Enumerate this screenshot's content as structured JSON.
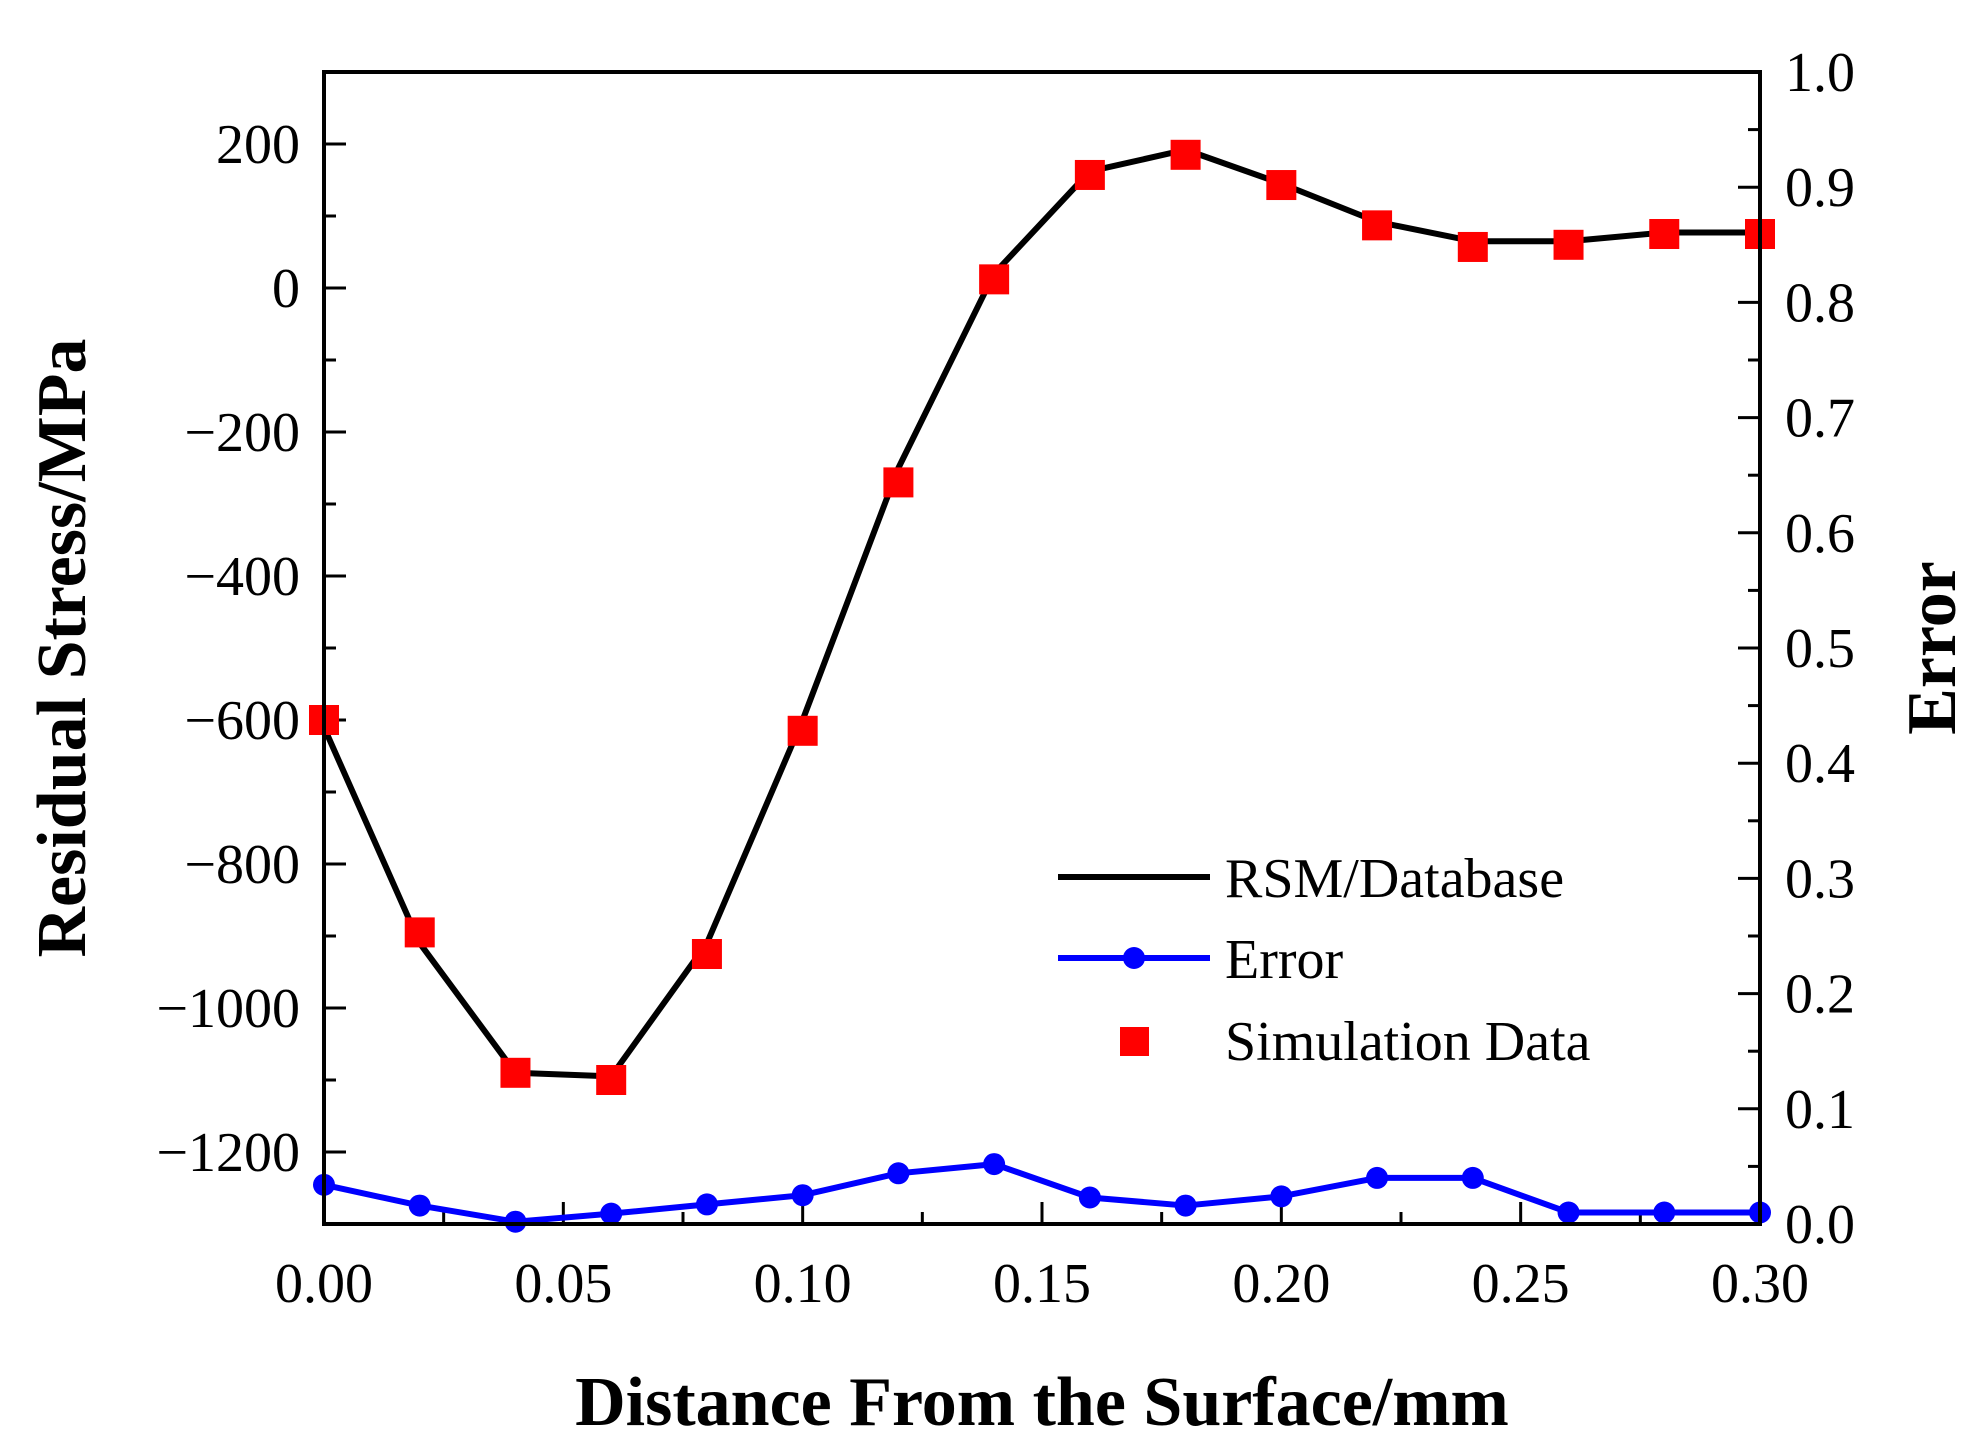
{
  "chart_data": {
    "type": "line",
    "title": "",
    "xlabel": "Distance From the Surface/mm",
    "ylabel": "Residual Stress/MPa",
    "y2label": "Error",
    "xlim": [
      0.0,
      0.3
    ],
    "ylim": [
      -1300,
      300
    ],
    "y2lim": [
      0.0,
      1.0
    ],
    "xticks": [
      "0.00",
      "0.05",
      "0.10",
      "0.15",
      "0.20",
      "0.25",
      "0.30"
    ],
    "yticks": [
      "200",
      "0",
      "−200",
      "−400",
      "−600",
      "−800",
      "−1000",
      "−1200"
    ],
    "y2ticks": [
      "1.0",
      "0.9",
      "0.8",
      "0.7",
      "0.6",
      "0.5",
      "0.4",
      "0.3",
      "0.2",
      "0.1",
      "0.0"
    ],
    "legend_position": "bottom-right",
    "x": [
      0.0,
      0.02,
      0.04,
      0.06,
      0.08,
      0.1,
      0.12,
      0.14,
      0.16,
      0.18,
      0.2,
      0.22,
      0.24,
      0.26,
      0.28,
      0.3
    ],
    "series": [
      {
        "name": "RSM/Database",
        "axis": "left",
        "style": "line",
        "color": "#000000",
        "values": [
          -610,
          -910,
          -1090,
          -1095,
          -910,
          -600,
          -250,
          20,
          162,
          192,
          145,
          92,
          65,
          65,
          77,
          77
        ]
      },
      {
        "name": "Error",
        "axis": "right",
        "style": "line-marker",
        "color": "#0000ff",
        "values": [
          0.034,
          0.016,
          0.002,
          0.009,
          0.017,
          0.025,
          0.044,
          0.052,
          0.023,
          0.016,
          0.024,
          0.04,
          0.04,
          0.01,
          0.01,
          0.01
        ]
      },
      {
        "name": "Simulation Data",
        "axis": "left",
        "style": "square-marker",
        "color": "#ff0000",
        "values": [
          -600,
          -895,
          -1090,
          -1100,
          -925,
          -615,
          -270,
          12,
          157,
          185,
          143,
          87,
          57,
          60,
          75,
          75
        ]
      }
    ]
  }
}
